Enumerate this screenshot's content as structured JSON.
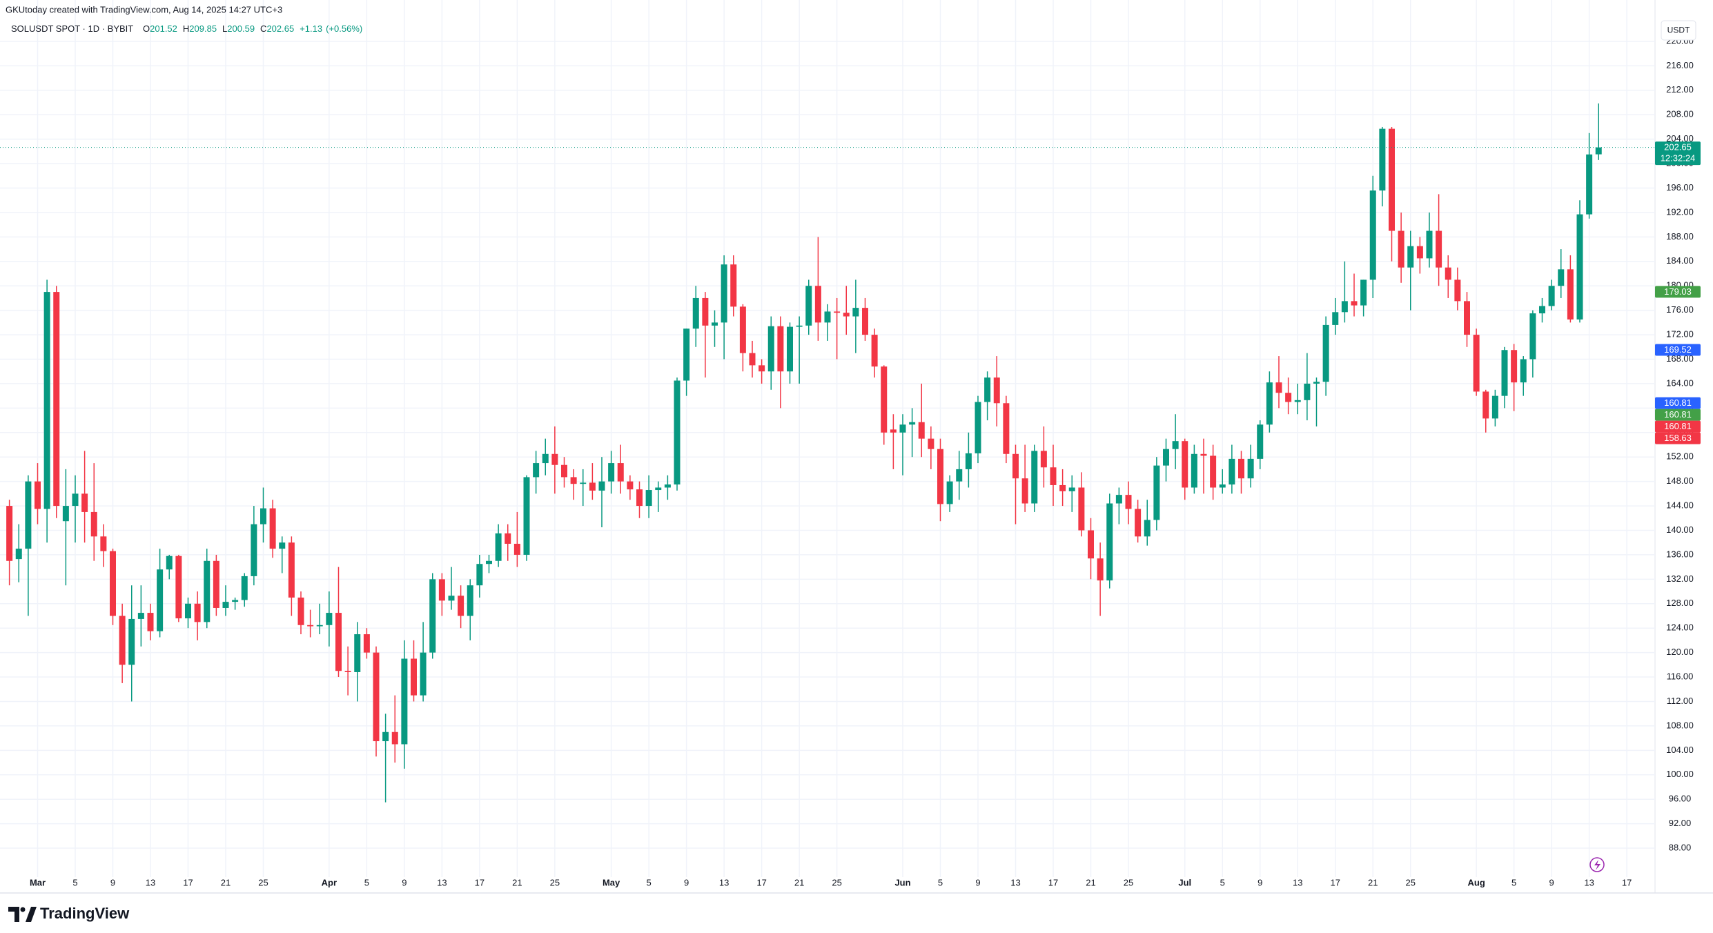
{
  "chart_data": {
    "type": "candlestick",
    "attribution": "GKUtoday created with TradingView.com, Aug 14, 2025 14:27 UTC+3",
    "legend": {
      "symbol": "SOLUSDT SPOT · 1D · BYBIT",
      "prefixes": [
        "O",
        "H",
        "L",
        "C"
      ],
      "change": "+1.13",
      "change_pct": "(+0.56%)"
    },
    "currency": "USDT",
    "brand": "TradingView",
    "up_color": "#089981",
    "down_color": "#f23645",
    "grid": true,
    "x": [
      "2025-02-26",
      "2025-02-27",
      "2025-02-28",
      "2025-03-01",
      "2025-03-02",
      "2025-03-03",
      "2025-03-04",
      "2025-03-05",
      "2025-03-06",
      "2025-03-07",
      "2025-03-08",
      "2025-03-09",
      "2025-03-10",
      "2025-03-11",
      "2025-03-12",
      "2025-03-13",
      "2025-03-14",
      "2025-03-15",
      "2025-03-16",
      "2025-03-17",
      "2025-03-18",
      "2025-03-19",
      "2025-03-20",
      "2025-03-21",
      "2025-03-22",
      "2025-03-23",
      "2025-03-24",
      "2025-03-25",
      "2025-03-26",
      "2025-03-27",
      "2025-03-28",
      "2025-03-29",
      "2025-03-30",
      "2025-03-31",
      "2025-04-01",
      "2025-04-02",
      "2025-04-03",
      "2025-04-04",
      "2025-04-05",
      "2025-04-06",
      "2025-04-07",
      "2025-04-08",
      "2025-04-09",
      "2025-04-10",
      "2025-04-11",
      "2025-04-12",
      "2025-04-13",
      "2025-04-14",
      "2025-04-15",
      "2025-04-16",
      "2025-04-17",
      "2025-04-18",
      "2025-04-19",
      "2025-04-20",
      "2025-04-21",
      "2025-04-22",
      "2025-04-23",
      "2025-04-24",
      "2025-04-25",
      "2025-04-26",
      "2025-04-27",
      "2025-04-28",
      "2025-04-29",
      "2025-04-30",
      "2025-05-01",
      "2025-05-02",
      "2025-05-03",
      "2025-05-04",
      "2025-05-05",
      "2025-05-06",
      "2025-05-07",
      "2025-05-08",
      "2025-05-09",
      "2025-05-10",
      "2025-05-11",
      "2025-05-12",
      "2025-05-13",
      "2025-05-14",
      "2025-05-15",
      "2025-05-16",
      "2025-05-17",
      "2025-05-18",
      "2025-05-19",
      "2025-05-20",
      "2025-05-21",
      "2025-05-22",
      "2025-05-23",
      "2025-05-24",
      "2025-05-25",
      "2025-05-26",
      "2025-05-27",
      "2025-05-28",
      "2025-05-29",
      "2025-05-30",
      "2025-05-31",
      "2025-06-01",
      "2025-06-02",
      "2025-06-03",
      "2025-06-04",
      "2025-06-05",
      "2025-06-06",
      "2025-06-07",
      "2025-06-08",
      "2025-06-09",
      "2025-06-10",
      "2025-06-11",
      "2025-06-12",
      "2025-06-13",
      "2025-06-14",
      "2025-06-15",
      "2025-06-16",
      "2025-06-17",
      "2025-06-18",
      "2025-06-19",
      "2025-06-20",
      "2025-06-21",
      "2025-06-22",
      "2025-06-23",
      "2025-06-24",
      "2025-06-25",
      "2025-06-26",
      "2025-06-27",
      "2025-06-28",
      "2025-06-29",
      "2025-06-30",
      "2025-07-01",
      "2025-07-02",
      "2025-07-03",
      "2025-07-04",
      "2025-07-05",
      "2025-07-06",
      "2025-07-07",
      "2025-07-08",
      "2025-07-09",
      "2025-07-10",
      "2025-07-11",
      "2025-07-12",
      "2025-07-13",
      "2025-07-14",
      "2025-07-15",
      "2025-07-16",
      "2025-07-17",
      "2025-07-18",
      "2025-07-19",
      "2025-07-20",
      "2025-07-21",
      "2025-07-22",
      "2025-07-23",
      "2025-07-24",
      "2025-07-25",
      "2025-07-26",
      "2025-07-27",
      "2025-07-28",
      "2025-07-29",
      "2025-07-30",
      "2025-07-31",
      "2025-08-01",
      "2025-08-02",
      "2025-08-03",
      "2025-08-04",
      "2025-08-05",
      "2025-08-06",
      "2025-08-07",
      "2025-08-08",
      "2025-08-09",
      "2025-08-10",
      "2025-08-11",
      "2025-08-12",
      "2025-08-13",
      "2025-08-14"
    ],
    "open": [
      144,
      135.3,
      137,
      148,
      143.5,
      179,
      141.5,
      144,
      146,
      143,
      139,
      136.6,
      126,
      118,
      125.5,
      126.5,
      123.5,
      133.6,
      135.8,
      125.6,
      128,
      125,
      135,
      127.3,
      128.3,
      128.6,
      132.5,
      141,
      143.6,
      137,
      138,
      129,
      124.5,
      124.3,
      124.5,
      126.5,
      117,
      116.8,
      123,
      120,
      105.5,
      107,
      105,
      119,
      113,
      120,
      132,
      128.5,
      129.3,
      126,
      131,
      134.5,
      135,
      139.5,
      137.8,
      136,
      148.7,
      151,
      152.5,
      150.7,
      148.7,
      147.6,
      147.8,
      146.5,
      148,
      151,
      148,
      146.7,
      144,
      146.6,
      147,
      147.5,
      164.5,
      173,
      178,
      173.5,
      174,
      183.5,
      176.6,
      169,
      167,
      166,
      173.4,
      166,
      173.3,
      173.5,
      180,
      174,
      175.8,
      175.6,
      175,
      176.4,
      172,
      166.8,
      156.5,
      156,
      157.3,
      157.7,
      155,
      153.3,
      144.3,
      148,
      150,
      152.6,
      161,
      165,
      160.8,
      152.5,
      148.5,
      144.4,
      153,
      150.3,
      147.4,
      146.4,
      147,
      140,
      135.4,
      131.8,
      144.4,
      145.8,
      143.5,
      139,
      141.7,
      150.6,
      153.3,
      154.6,
      147,
      152.5,
      152.2,
      147,
      147.5,
      151.7,
      148.5,
      151.7,
      157.3,
      164.2,
      162.5,
      161,
      161.3,
      164,
      164.3,
      173.6,
      175.7,
      177.5,
      176.8,
      181,
      195.6,
      205.7,
      189,
      183,
      186.5,
      184.5,
      189,
      183,
      181,
      177.5,
      172,
      162.7,
      158.3,
      162,
      169.5,
      164.2,
      168,
      175.5,
      176.7,
      180,
      182.7,
      174.5,
      191.7,
      201.52
    ],
    "high": [
      145,
      141,
      149,
      151,
      181,
      180,
      150,
      149,
      153,
      151,
      141,
      137,
      128,
      131,
      131,
      128,
      137,
      136,
      136,
      129,
      130,
      137,
      136,
      131,
      129,
      133,
      144,
      147,
      145,
      139,
      139,
      130,
      127,
      128,
      130,
      134,
      121,
      125,
      124,
      121,
      110,
      113,
      122,
      122,
      125,
      133,
      133,
      134,
      131,
      132,
      136,
      136,
      141,
      141,
      143,
      149,
      153,
      155,
      157,
      152,
      150,
      150,
      151,
      152,
      153,
      154,
      149,
      148,
      149,
      148,
      149,
      165,
      173,
      180,
      179,
      176,
      185,
      185,
      177,
      171,
      168,
      175,
      175,
      174,
      175,
      181,
      188,
      177,
      178,
      180,
      181,
      178,
      173,
      167,
      159,
      159,
      160,
      164,
      157,
      155,
      149,
      153,
      156,
      162,
      166,
      168.5,
      162,
      154,
      154,
      154,
      157,
      154,
      150,
      149,
      149.5,
      142,
      138,
      146,
      147,
      148,
      145,
      145,
      152,
      155,
      159,
      155,
      154,
      155,
      154,
      150,
      154,
      153,
      154,
      158,
      166,
      168.5,
      165,
      164,
      169,
      165,
      175,
      178,
      184,
      182,
      181,
      198,
      206,
      206,
      192,
      189,
      188,
      192,
      195,
      185,
      183,
      179,
      173,
      163,
      163,
      170,
      170.5,
      168.5,
      176,
      178,
      181,
      186,
      185,
      194,
      205,
      209.85
    ],
    "low": [
      131,
      131.5,
      126,
      141,
      138,
      142,
      131,
      138,
      138,
      135,
      134,
      124.5,
      115,
      112,
      121,
      122,
      122.5,
      132,
      125,
      124,
      122,
      124,
      126,
      126,
      127,
      127.5,
      131,
      138,
      135.5,
      133,
      126,
      123,
      122.5,
      123,
      121,
      116,
      113,
      112,
      119,
      103,
      95.5,
      102,
      101,
      112,
      112,
      119,
      126,
      127,
      124,
      122,
      129,
      133,
      134,
      135,
      134,
      135,
      146,
      149,
      146,
      147,
      145,
      144,
      145,
      140.5,
      146,
      146,
      145,
      142,
      142,
      143,
      145,
      146.5,
      162,
      170,
      165,
      170,
      168,
      175,
      166,
      165,
      164,
      163,
      160,
      164,
      164,
      172,
      171,
      171,
      168,
      172,
      169,
      171,
      165,
      154,
      150,
      149,
      152,
      152,
      150,
      141.5,
      143,
      145,
      147,
      151,
      158,
      157,
      151,
      141,
      143,
      143,
      147,
      144,
      144,
      143,
      139,
      132,
      126,
      130.5,
      141,
      141,
      138,
      137.5,
      140,
      148,
      150,
      145,
      146,
      146,
      145,
      146,
      146,
      146,
      147,
      150,
      156,
      160,
      159,
      159,
      158,
      157,
      162,
      172,
      174,
      175,
      175,
      178,
      193,
      184,
      180.5,
      176,
      182,
      183,
      180,
      178,
      176,
      170,
      162,
      156,
      157,
      160,
      159.5,
      162,
      165,
      174,
      176,
      178,
      174,
      174,
      191,
      200.59
    ],
    "close": [
      135,
      137,
      148,
      143.5,
      179,
      144,
      144,
      146,
      143,
      139,
      136.6,
      126,
      118,
      125.5,
      126.5,
      123.5,
      133.6,
      135.8,
      125.6,
      128,
      125,
      135,
      127.3,
      128.3,
      128.6,
      132.5,
      141,
      143.6,
      137,
      138,
      129,
      124.5,
      124.3,
      124.5,
      126.5,
      117,
      116.8,
      123,
      120,
      105.5,
      107,
      105,
      119,
      113,
      120,
      132,
      128.5,
      129.3,
      126,
      131,
      134.5,
      135,
      139.5,
      137.8,
      136,
      148.7,
      151,
      152.5,
      150.7,
      148.7,
      147.6,
      147.8,
      146.5,
      148,
      151,
      148,
      146.7,
      144,
      146.6,
      147,
      147.5,
      164.5,
      173,
      178,
      173.5,
      174,
      183.5,
      176.6,
      169,
      167,
      166,
      173.4,
      166,
      173.3,
      173.5,
      180,
      174,
      175.8,
      175.6,
      175,
      176.4,
      172,
      166.8,
      156,
      156,
      157.3,
      157.7,
      155,
      153.3,
      144.3,
      148,
      150,
      152.6,
      161,
      165,
      160.8,
      152.5,
      148.5,
      144.4,
      153,
      150.3,
      147.4,
      146.4,
      147,
      140,
      135.4,
      131.8,
      144.4,
      145.8,
      143.5,
      139,
      141.7,
      150.6,
      153.3,
      154.6,
      147,
      152.5,
      152.2,
      147,
      147.5,
      151.7,
      148.5,
      151.7,
      157.3,
      164.2,
      162.5,
      161,
      161.3,
      164,
      164.3,
      173.6,
      175.7,
      177.5,
      176.8,
      181,
      195.6,
      205.7,
      189,
      183,
      186.5,
      184.5,
      189,
      183,
      181,
      177.5,
      172,
      162.7,
      158.3,
      162,
      169.5,
      164.2,
      168,
      175.5,
      176.7,
      180,
      182.7,
      174.5,
      191.7,
      201.5,
      202.65
    ],
    "xlim": [
      "2025-02-25",
      "2025-08-20"
    ],
    "xticks": [
      {
        "value": "2025-03-01",
        "label": "Mar"
      },
      {
        "value": "2025-03-05",
        "label": "5"
      },
      {
        "value": "2025-03-09",
        "label": "9"
      },
      {
        "value": "2025-03-13",
        "label": "13"
      },
      {
        "value": "2025-03-17",
        "label": "17"
      },
      {
        "value": "2025-03-21",
        "label": "21"
      },
      {
        "value": "2025-03-25",
        "label": "25"
      },
      {
        "value": "2025-04-01",
        "label": "Apr"
      },
      {
        "value": "2025-04-05",
        "label": "5"
      },
      {
        "value": "2025-04-09",
        "label": "9"
      },
      {
        "value": "2025-04-13",
        "label": "13"
      },
      {
        "value": "2025-04-17",
        "label": "17"
      },
      {
        "value": "2025-04-21",
        "label": "21"
      },
      {
        "value": "2025-04-25",
        "label": "25"
      },
      {
        "value": "2025-05-01",
        "label": "May"
      },
      {
        "value": "2025-05-05",
        "label": "5"
      },
      {
        "value": "2025-05-09",
        "label": "9"
      },
      {
        "value": "2025-05-13",
        "label": "13"
      },
      {
        "value": "2025-05-17",
        "label": "17"
      },
      {
        "value": "2025-05-21",
        "label": "21"
      },
      {
        "value": "2025-05-25",
        "label": "25"
      },
      {
        "value": "2025-06-01",
        "label": "Jun"
      },
      {
        "value": "2025-06-05",
        "label": "5"
      },
      {
        "value": "2025-06-09",
        "label": "9"
      },
      {
        "value": "2025-06-13",
        "label": "13"
      },
      {
        "value": "2025-06-17",
        "label": "17"
      },
      {
        "value": "2025-06-21",
        "label": "21"
      },
      {
        "value": "2025-06-25",
        "label": "25"
      },
      {
        "value": "2025-07-01",
        "label": "Jul"
      },
      {
        "value": "2025-07-05",
        "label": "5"
      },
      {
        "value": "2025-07-09",
        "label": "9"
      },
      {
        "value": "2025-07-13",
        "label": "13"
      },
      {
        "value": "2025-07-17",
        "label": "17"
      },
      {
        "value": "2025-07-21",
        "label": "21"
      },
      {
        "value": "2025-07-25",
        "label": "25"
      },
      {
        "value": "2025-08-01",
        "label": "Aug"
      },
      {
        "value": "2025-08-05",
        "label": "5"
      },
      {
        "value": "2025-08-09",
        "label": "9"
      },
      {
        "value": "2025-08-13",
        "label": "13"
      },
      {
        "value": "2025-08-17",
        "label": "17"
      }
    ],
    "ylim": [
      83.94,
      221.35
    ],
    "yticks": [
      {
        "value": 88,
        "label": "88.00"
      },
      {
        "value": 92,
        "label": "92.00"
      },
      {
        "value": 96,
        "label": "96.00"
      },
      {
        "value": 100,
        "label": "100.00"
      },
      {
        "value": 104,
        "label": "104.00"
      },
      {
        "value": 108,
        "label": "108.00"
      },
      {
        "value": 112,
        "label": "112.00"
      },
      {
        "value": 116,
        "label": "116.00"
      },
      {
        "value": 120,
        "label": "120.00"
      },
      {
        "value": 124,
        "label": "124.00"
      },
      {
        "value": 128,
        "label": "128.00"
      },
      {
        "value": 132,
        "label": "132.00"
      },
      {
        "value": 136,
        "label": "136.00"
      },
      {
        "value": 140,
        "label": "140.00"
      },
      {
        "value": 144,
        "label": "144.00"
      },
      {
        "value": 148,
        "label": "148.00"
      },
      {
        "value": 152,
        "label": "152.00"
      },
      {
        "value": 156,
        "label": "156.00"
      },
      {
        "value": 160,
        "label": "160.00"
      },
      {
        "value": 164,
        "label": "164.00"
      },
      {
        "value": 168,
        "label": "168.00"
      },
      {
        "value": 172,
        "label": "172.00"
      },
      {
        "value": 176,
        "label": "176.00"
      },
      {
        "value": 180,
        "label": "180.00"
      },
      {
        "value": 184,
        "label": "184.00"
      },
      {
        "value": 188,
        "label": "188.00"
      },
      {
        "value": 192,
        "label": "192.00"
      },
      {
        "value": 196,
        "label": "196.00"
      },
      {
        "value": 200,
        "label": "200.00"
      },
      {
        "value": 204,
        "label": "204.00"
      },
      {
        "value": 208,
        "label": "208.00"
      },
      {
        "value": 212,
        "label": "212.00"
      },
      {
        "value": 216,
        "label": "216.00"
      },
      {
        "value": 220,
        "label": "220.00"
      }
    ],
    "price_tags": [
      {
        "value": 202.65,
        "color": "#089981",
        "countdown": "12:32:24"
      },
      {
        "value": 179.03,
        "color": "#43a047"
      },
      {
        "value": 169.52,
        "color": "#2962ff"
      },
      {
        "value": 160.81,
        "color": "#2962ff"
      },
      {
        "value": 160.81,
        "color": "#43a047"
      },
      {
        "value": 160.81,
        "color": "#f23645"
      },
      {
        "value": 158.63,
        "color": "#f23645"
      }
    ]
  }
}
